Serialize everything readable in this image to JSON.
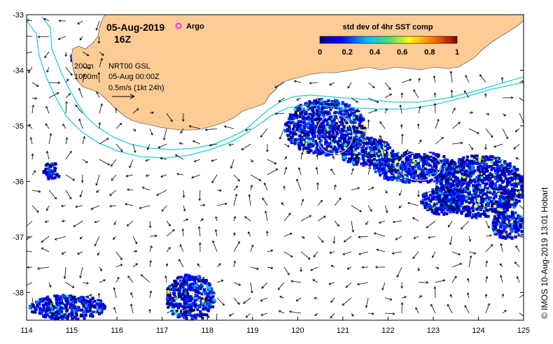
{
  "map": {
    "date": "05-Aug-2019",
    "hour": "16Z",
    "argo_label": "Argo",
    "argo_color": "#ff00ff",
    "contour_labels": [
      "200m",
      "1000m"
    ],
    "analysis_label": "NRT00 GSL",
    "analysis_time": "05-Aug 00:00Z",
    "scale_label": "0.5m/s (1kt 24h)",
    "credit": "© IMOS 10-Aug-2019 13:01 Hobart",
    "land_color": "#fccb96",
    "isobath_color": "#22ccdd"
  },
  "colorbar": {
    "title": "std dev of 4hr SST comp",
    "tick_labels": [
      "0",
      "0.2",
      "0.4",
      "0.6",
      "0.8",
      "1"
    ],
    "min": 0,
    "max": 1
  },
  "axes": {
    "lon_min": 114,
    "lon_max": 125,
    "lat_min": -38.5,
    "lat_max": -33,
    "x_ticks": [
      "114",
      "115",
      "116",
      "117",
      "118",
      "119",
      "120",
      "121",
      "122",
      "123",
      "124",
      "125"
    ],
    "y_ticks": [
      "-33",
      "-34",
      "-35",
      "-36",
      "-37",
      "-38"
    ]
  }
}
